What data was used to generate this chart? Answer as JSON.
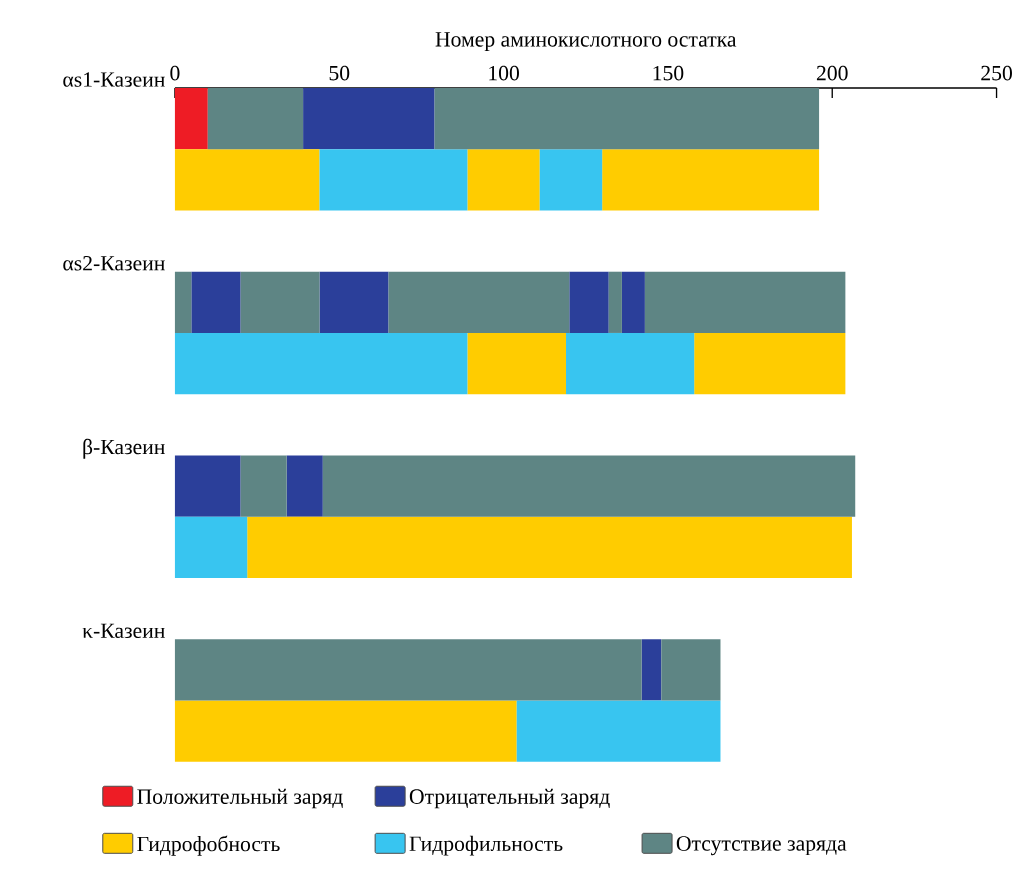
{
  "chart_data": {
    "type": "bar",
    "orientation": "horizontal",
    "xlabel": "Номер аминокислотного остатка",
    "categories": [
      "αs1-Казеин",
      null,
      "αs2-Казеин",
      null,
      "β-Казеин",
      null,
      "κ-Казеин",
      null
    ],
    "xlim": [
      0,
      250
    ],
    "xticks": [
      0,
      50,
      100,
      150,
      200,
      250
    ],
    "legend": "bottom",
    "series": [
      {
        "name": "Положительный заряд",
        "color": "#ee1c25",
        "base": [
          0,
          null,
          null,
          null,
          null,
          null,
          null,
          null
        ],
        "values": [
          10,
          null,
          null,
          null,
          null,
          null,
          null,
          null
        ]
      },
      {
        "name": "Отрицательный заряд",
        "color": "#2b3f9a",
        "base": [
          39,
          null,
          5,
          null,
          0,
          null,
          142,
          null
        ],
        "values": [
          40,
          null,
          15,
          null,
          20,
          null,
          6,
          null
        ]
      },
      {
        "color": "#2b3f9a",
        "base": [
          null,
          null,
          44,
          null,
          34,
          null,
          null,
          null
        ],
        "values": [
          null,
          null,
          21,
          null,
          11,
          null,
          null,
          null
        ]
      },
      {
        "color": "#2b3f9a",
        "base": [
          null,
          null,
          120,
          null,
          null,
          null,
          null,
          null
        ],
        "values": [
          null,
          null,
          12,
          null,
          null,
          null,
          null,
          null
        ]
      },
      {
        "color": "#2b3f9a",
        "base": [
          null,
          null,
          136,
          null,
          null,
          null,
          null,
          null
        ],
        "values": [
          null,
          null,
          7,
          null,
          null,
          null,
          null,
          null
        ]
      },
      {
        "name": "Гидрофобность",
        "color": "#ffcc00",
        "base": [
          null,
          0,
          null,
          89,
          null,
          22,
          null,
          0
        ],
        "values": [
          null,
          44,
          null,
          30,
          null,
          184,
          null,
          104
        ]
      },
      {
        "color": "#ffcc00",
        "base": [
          null,
          89,
          null,
          158,
          null,
          null,
          null,
          null
        ],
        "values": [
          null,
          22,
          null,
          46,
          null,
          null,
          null,
          null
        ]
      },
      {
        "color": "#ffcc00",
        "base": [
          null,
          130,
          null,
          null,
          null,
          null,
          null,
          null
        ],
        "values": [
          null,
          66,
          null,
          null,
          null,
          null,
          null,
          null
        ]
      },
      {
        "name": "Гидрофильность",
        "color": "#38c5f0",
        "base": [
          null,
          44,
          null,
          0,
          null,
          0,
          null,
          104
        ],
        "values": [
          null,
          45,
          null,
          89,
          null,
          22,
          null,
          62
        ]
      },
      {
        "color": "#38c5f0",
        "base": [
          null,
          111,
          null,
          119,
          null,
          null,
          null,
          null
        ],
        "values": [
          null,
          19,
          null,
          39,
          null,
          null,
          null,
          null
        ]
      },
      {
        "name": "Отсутствие заряда",
        "color": "#5e8584",
        "base": [
          10,
          null,
          0,
          null,
          20,
          null,
          0,
          null
        ],
        "values": [
          29,
          null,
          5,
          null,
          14,
          null,
          142,
          null
        ]
      },
      {
        "color": "#5e8584",
        "base": [
          79,
          null,
          20,
          null,
          45,
          null,
          148,
          null
        ],
        "values": [
          117,
          null,
          24,
          null,
          162,
          null,
          18,
          null
        ]
      },
      {
        "color": "#5e8584",
        "base": [
          null,
          null,
          65,
          null,
          null,
          null,
          null,
          null
        ],
        "values": [
          null,
          null,
          55,
          null,
          null,
          null,
          null,
          null
        ]
      },
      {
        "color": "#5e8584",
        "base": [
          null,
          null,
          132,
          null,
          null,
          null,
          null,
          null
        ],
        "values": [
          null,
          null,
          4,
          null,
          null,
          null,
          null,
          null
        ]
      },
      {
        "color": "#5e8584",
        "base": [
          null,
          null,
          143,
          null,
          null,
          null,
          null,
          null
        ],
        "values": [
          null,
          null,
          61,
          null,
          null,
          null,
          null,
          null
        ]
      }
    ]
  }
}
